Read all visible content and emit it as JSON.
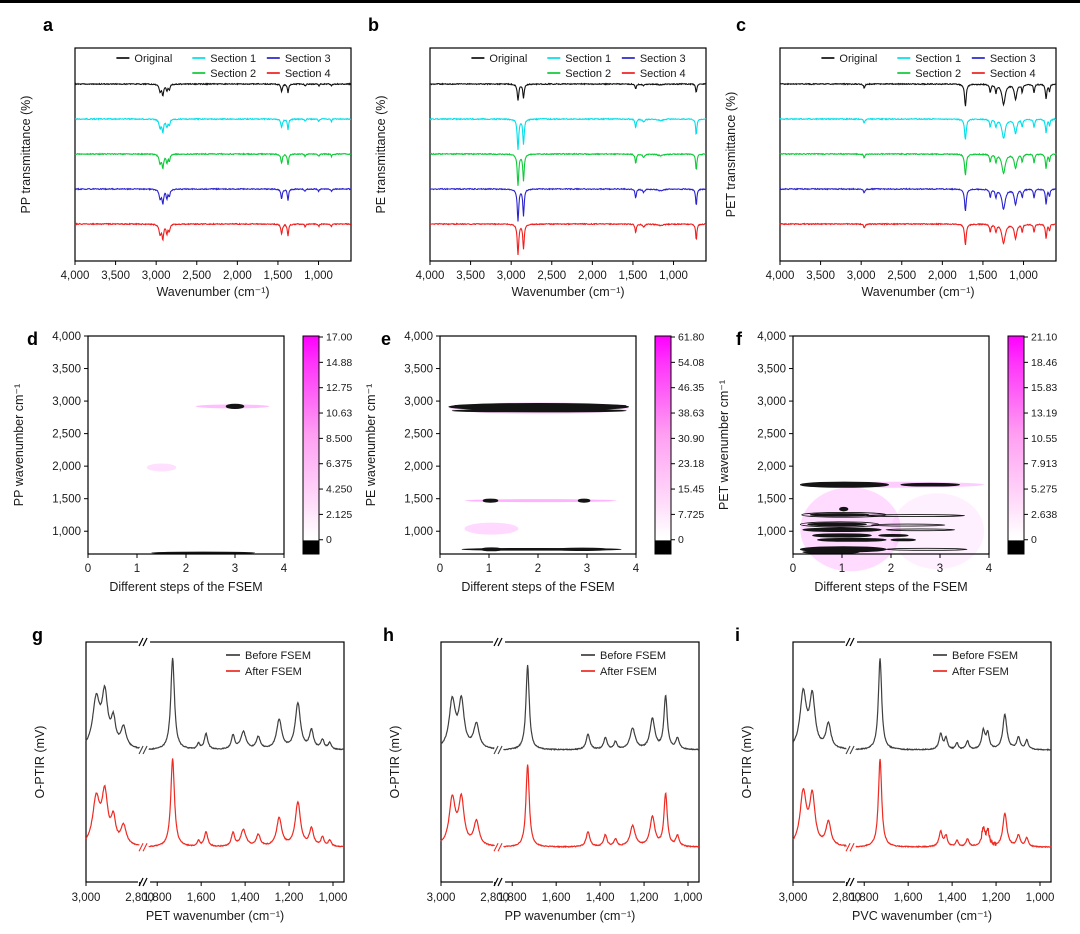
{
  "panels": {
    "a": {
      "letter": "a"
    },
    "b": {
      "letter": "b"
    },
    "c": {
      "letter": "c"
    },
    "d": {
      "letter": "d"
    },
    "e": {
      "letter": "e"
    },
    "f": {
      "letter": "f"
    },
    "g": {
      "letter": "g"
    },
    "h": {
      "letter": "h"
    },
    "i": {
      "letter": "i"
    }
  },
  "chart_data": [
    {
      "id": "a",
      "type": "ftir",
      "title": "",
      "ylabel": "PP transmittance (%)",
      "xlabel": "Wavenumber (cm⁻¹)",
      "x_range": [
        4000,
        600
      ],
      "x_tick_values": [
        4000,
        3500,
        3000,
        2500,
        2000,
        1500,
        1000
      ],
      "x_tick_labels": [
        "4,000",
        "3,500",
        "3,000",
        "2,500",
        "2,000",
        "1,500",
        "1,000"
      ],
      "noise": 1.0,
      "series": [
        {
          "name": "Original",
          "color": "#111111",
          "scale": 0.8
        },
        {
          "name": "Section 1",
          "color": "#00dfe9",
          "scale": 0.95
        },
        {
          "name": "Section 2",
          "color": "#0ec939",
          "scale": 1.0
        },
        {
          "name": "Section 3",
          "color": "#2a23cd",
          "scale": 1.05
        },
        {
          "name": "Section 4",
          "color": "#f01e1e",
          "scale": 1.1
        }
      ],
      "bands": [
        {
          "c": 2952,
          "w": 14,
          "d": 9
        },
        {
          "c": 2918,
          "w": 12,
          "d": 13
        },
        {
          "c": 2868,
          "w": 12,
          "d": 8
        },
        {
          "c": 2838,
          "w": 10,
          "d": 6
        },
        {
          "c": 1455,
          "w": 11,
          "d": 9
        },
        {
          "c": 1376,
          "w": 9,
          "d": 11
        },
        {
          "c": 1166,
          "w": 8,
          "d": 2.5
        },
        {
          "c": 997,
          "w": 7,
          "d": 2.5
        },
        {
          "c": 841,
          "w": 7,
          "d": 2.5
        }
      ]
    },
    {
      "id": "b",
      "type": "ftir",
      "title": "",
      "ylabel": "PE transmittance (%)",
      "xlabel": "Wavenumber (cm⁻¹)",
      "x_range": [
        4000,
        600
      ],
      "x_tick_values": [
        4000,
        3500,
        3000,
        2500,
        2000,
        1500,
        1000
      ],
      "x_tick_labels": [
        "4,000",
        "3,500",
        "3,000",
        "2,500",
        "2,000",
        "1,500",
        "1,000"
      ],
      "noise": 1.0,
      "series": [
        {
          "name": "Original",
          "color": "#111111",
          "scale": 0.55
        },
        {
          "name": "Section 1",
          "color": "#00dfe9",
          "scale": 1.0
        },
        {
          "name": "Section 2",
          "color": "#0ec939",
          "scale": 1.05
        },
        {
          "name": "Section 3",
          "color": "#2a23cd",
          "scale": 1.05
        },
        {
          "name": "Section 4",
          "color": "#f01e1e",
          "scale": 1.0
        }
      ],
      "bands": [
        {
          "c": 2916,
          "w": 11,
          "d": 30
        },
        {
          "c": 2848,
          "w": 10,
          "d": 25
        },
        {
          "c": 1466,
          "w": 9,
          "d": 9
        },
        {
          "c": 1368,
          "w": 16,
          "d": 3
        },
        {
          "c": 1160,
          "w": 40,
          "d": 1.5
        },
        {
          "c": 720,
          "w": 9,
          "d": 16
        }
      ]
    },
    {
      "id": "c",
      "type": "ftir",
      "title": "",
      "ylabel": "PET transmittance (%)",
      "xlabel": "Wavenumber (cm⁻¹)",
      "x_range": [
        4000,
        600
      ],
      "x_tick_values": [
        4000,
        3500,
        3000,
        2500,
        2000,
        1500,
        1000
      ],
      "x_tick_labels": [
        "4,000",
        "3,500",
        "3,000",
        "2,500",
        "2,000",
        "1,500",
        "1,000"
      ],
      "noise": 1.2,
      "noise_per_series": [
        2.0,
        1.2,
        1.2,
        1.2,
        1.2
      ],
      "series": [
        {
          "name": "Original",
          "color": "#111111",
          "scale": 1.0
        },
        {
          "name": "Section 1",
          "color": "#00dfe9",
          "scale": 0.95
        },
        {
          "name": "Section 2",
          "color": "#0ec939",
          "scale": 0.95
        },
        {
          "name": "Section 3",
          "color": "#2a23cd",
          "scale": 1.0
        },
        {
          "name": "Section 4",
          "color": "#f01e1e",
          "scale": 0.95
        }
      ],
      "bands": [
        {
          "c": 2962,
          "w": 10,
          "d": 4
        },
        {
          "c": 1716,
          "w": 12,
          "d": 22
        },
        {
          "c": 1410,
          "w": 10,
          "d": 8
        },
        {
          "c": 1340,
          "w": 10,
          "d": 8
        },
        {
          "c": 1246,
          "w": 24,
          "d": 20
        },
        {
          "c": 1098,
          "w": 18,
          "d": 15
        },
        {
          "c": 1016,
          "w": 9,
          "d": 8
        },
        {
          "c": 870,
          "w": 9,
          "d": 9
        },
        {
          "c": 722,
          "w": 10,
          "d": 15
        },
        {
          "c": 680,
          "w": 8,
          "d": 7
        }
      ]
    },
    {
      "id": "d",
      "type": "heatmap",
      "ylabel": "PP wavenumber cm⁻¹",
      "xlabel": "Different steps of the FSEM",
      "y_range": [
        4000,
        650
      ],
      "y_tick_values": [
        4000,
        3500,
        3000,
        2500,
        2000,
        1500,
        1000
      ],
      "y_tick_labels": [
        "4,000",
        "3,500",
        "3,000",
        "2,500",
        "2,000",
        "1,500",
        "1,000"
      ],
      "x_tick_values": [
        0,
        1,
        2,
        3,
        4
      ],
      "x_tick_labels": [
        "0",
        "1",
        "2",
        "3",
        "4"
      ],
      "colorbar": {
        "top_color": "#ff00ff",
        "tick_labels": [
          "17.00",
          "14.88",
          "12.75",
          "10.63",
          "8.500",
          "6.375",
          "4.250",
          "2.125",
          "0"
        ]
      },
      "glows": [
        {
          "y": 2918,
          "x0": 2.2,
          "x1": 3.7,
          "ry": 2,
          "o": 0.25
        },
        {
          "y": 1980,
          "x0": 1.2,
          "x1": 1.8,
          "ry": 4,
          "o": 0.12
        }
      ],
      "bands": [
        {
          "y": 2918,
          "x0": 2.82,
          "x1": 3.18,
          "t": 2.2,
          "fill": true
        },
        {
          "y": 668,
          "x0": 1.3,
          "x1": 3.4,
          "t": 0.8,
          "fill": true
        }
      ]
    },
    {
      "id": "e",
      "type": "heatmap",
      "ylabel": "PE wavenumber cm⁻¹",
      "xlabel": "Different steps of the FSEM",
      "y_range": [
        4000,
        650
      ],
      "y_tick_values": [
        4000,
        3500,
        3000,
        2500,
        2000,
        1500,
        1000
      ],
      "y_tick_labels": [
        "4,000",
        "3,500",
        "3,000",
        "2,500",
        "2,000",
        "1,500",
        "1,000"
      ],
      "x_tick_values": [
        0,
        1,
        2,
        3,
        4
      ],
      "x_tick_labels": [
        "0",
        "1",
        "2",
        "3",
        "4"
      ],
      "colorbar": {
        "top_color": "#ff00ff",
        "tick_labels": [
          "61.80",
          "54.08",
          "46.35",
          "38.63",
          "30.90",
          "23.18",
          "15.45",
          "7.725",
          "0"
        ]
      },
      "glows": [
        {
          "y": 2890,
          "x0": 0.2,
          "x1": 3.85,
          "ry": 6,
          "o": 0.15
        },
        {
          "y": 1470,
          "x0": 0.5,
          "x1": 3.6,
          "ry": 1.5,
          "o": 0.3
        },
        {
          "y": 1040,
          "x0": 0.5,
          "x1": 1.6,
          "ry": 6,
          "o": 0.15
        }
      ],
      "bands": [
        {
          "y": 2912,
          "x0": 0.18,
          "x1": 3.85,
          "t": 3.4,
          "fill": true
        },
        {
          "y": 2934,
          "x0": 0.3,
          "x1": 3.8,
          "t": 0.8,
          "fill": false
        },
        {
          "y": 2852,
          "x0": 0.25,
          "x1": 3.8,
          "t": 1.2,
          "fill": true
        },
        {
          "y": 1470,
          "x0": 0.88,
          "x1": 1.18,
          "t": 1.6,
          "fill": true
        },
        {
          "y": 1470,
          "x0": 2.82,
          "x1": 3.06,
          "t": 1.6,
          "fill": true
        },
        {
          "y": 722,
          "x0": 0.45,
          "x1": 3.7,
          "t": 0.9,
          "fill": true
        },
        {
          "y": 722,
          "x0": 0.85,
          "x1": 1.25,
          "t": 1.5,
          "fill": true
        },
        {
          "y": 722,
          "x0": 2.4,
          "x1": 3.4,
          "t": 1.2,
          "fill": true
        }
      ]
    },
    {
      "id": "f",
      "type": "heatmap",
      "ylabel": "PET wavenumber cm⁻¹",
      "xlabel": "Different steps of the FSEM",
      "y_range": [
        4000,
        650
      ],
      "y_tick_values": [
        4000,
        3500,
        3000,
        2500,
        2000,
        1500,
        1000
      ],
      "y_tick_labels": [
        "4,000",
        "3,500",
        "3,000",
        "2,500",
        "2,000",
        "1,500",
        "1,000"
      ],
      "x_tick_values": [
        0,
        1,
        2,
        3,
        4
      ],
      "x_tick_labels": [
        "0",
        "1",
        "2",
        "3",
        "4"
      ],
      "colorbar": {
        "top_color": "#ff00ff",
        "tick_labels": [
          "21.10",
          "18.46",
          "15.83",
          "13.19",
          "10.55",
          "7.913",
          "5.275",
          "2.638",
          "0"
        ]
      },
      "glows": [
        {
          "y": 1030,
          "x0": 0.15,
          "x1": 2.2,
          "ry": 42,
          "o": 0.14
        },
        {
          "y": 1000,
          "x0": 2.0,
          "x1": 3.9,
          "ry": 38,
          "o": 0.06
        },
        {
          "y": 1715,
          "x0": 0.2,
          "x1": 3.9,
          "ry": 3,
          "o": 0.2
        }
      ],
      "bands": [
        {
          "y": 1715,
          "x0": 0.15,
          "x1": 1.95,
          "t": 2.6,
          "fill": true
        },
        {
          "y": 1715,
          "x0": 2.2,
          "x1": 3.4,
          "t": 1.4,
          "fill": true
        },
        {
          "y": 1340,
          "x0": 0.95,
          "x1": 1.12,
          "t": 1.8,
          "fill": true
        },
        {
          "y": 1252,
          "x0": 0.18,
          "x1": 1.9,
          "t": 2.4,
          "fill": false
        },
        {
          "y": 1252,
          "x0": 0.35,
          "x1": 1.55,
          "t": 1.2,
          "fill": true
        },
        {
          "y": 1240,
          "x0": 1.5,
          "x1": 3.5,
          "t": 1.0,
          "fill": false
        },
        {
          "y": 1105,
          "x0": 0.15,
          "x1": 1.75,
          "t": 2.6,
          "fill": false
        },
        {
          "y": 1105,
          "x0": 0.3,
          "x1": 1.5,
          "t": 1.4,
          "fill": true
        },
        {
          "y": 1095,
          "x0": 1.6,
          "x1": 3.1,
          "t": 1.0,
          "fill": false
        },
        {
          "y": 1022,
          "x0": 0.2,
          "x1": 1.8,
          "t": 1.8,
          "fill": true
        },
        {
          "y": 1022,
          "x0": 1.9,
          "x1": 3.3,
          "t": 0.9,
          "fill": false
        },
        {
          "y": 935,
          "x0": 0.4,
          "x1": 1.6,
          "t": 1.6,
          "fill": true
        },
        {
          "y": 935,
          "x0": 1.75,
          "x1": 2.35,
          "t": 1.0,
          "fill": true
        },
        {
          "y": 868,
          "x0": 0.5,
          "x1": 1.9,
          "t": 1.5,
          "fill": true
        },
        {
          "y": 868,
          "x0": 2.0,
          "x1": 2.5,
          "t": 1.0,
          "fill": true
        },
        {
          "y": 722,
          "x0": 0.15,
          "x1": 1.9,
          "t": 2.6,
          "fill": true
        },
        {
          "y": 722,
          "x0": 1.9,
          "x1": 3.55,
          "t": 1.0,
          "fill": false
        },
        {
          "y": 678,
          "x0": 0.2,
          "x1": 1.35,
          "t": 1.4,
          "fill": true
        }
      ]
    },
    {
      "id": "g",
      "type": "optir",
      "ylabel": "O-PTIR (mV)",
      "xlabel": "PET wavenumber (cm⁻¹)",
      "x_tick_values": [
        3000,
        2800,
        1800,
        1600,
        1400,
        1200,
        1000
      ],
      "x_tick_labels": [
        "3,000",
        "2,800",
        "1,800",
        "1,600",
        "1,400",
        "1,200",
        "1,000"
      ],
      "axis_break_between": [
        2800,
        1800
      ],
      "series": [
        {
          "name": "Before FSEM",
          "color": "#3f3f3f",
          "baseline": 0.45,
          "scale": 1.0
        },
        {
          "name": "After FSEM",
          "color": "#ee2a22",
          "baseline": 0.855,
          "scale": 0.96
        }
      ],
      "peaks": [
        {
          "c": 2962,
          "w": 16,
          "h": 0.52
        },
        {
          "c": 2930,
          "w": 13,
          "h": 0.56
        },
        {
          "c": 2898,
          "w": 10,
          "h": 0.28
        },
        {
          "c": 2860,
          "w": 12,
          "h": 0.22
        },
        {
          "c": 1730,
          "w": 10,
          "h": 1.0
        },
        {
          "c": 1612,
          "w": 7,
          "h": 0.06
        },
        {
          "c": 1578,
          "w": 9,
          "h": 0.17
        },
        {
          "c": 1455,
          "w": 9,
          "h": 0.15
        },
        {
          "c": 1408,
          "w": 14,
          "h": 0.19
        },
        {
          "c": 1340,
          "w": 11,
          "h": 0.13
        },
        {
          "c": 1245,
          "w": 14,
          "h": 0.32
        },
        {
          "c": 1160,
          "w": 14,
          "h": 0.5
        },
        {
          "c": 1098,
          "w": 11,
          "h": 0.2
        },
        {
          "c": 1048,
          "w": 9,
          "h": 0.1
        },
        {
          "c": 1015,
          "w": 8,
          "h": 0.07
        }
      ]
    },
    {
      "id": "h",
      "type": "optir",
      "ylabel": "O-PTIR (mV)",
      "xlabel": "PP wavenumber (cm⁻¹)",
      "x_tick_values": [
        3000,
        2800,
        1800,
        1600,
        1400,
        1200,
        1000
      ],
      "x_tick_labels": [
        "3,000",
        "2,800",
        "1,800",
        "1,600",
        "1,400",
        "1,200",
        "1,000"
      ],
      "axis_break_between": [
        2800,
        1800
      ],
      "series": [
        {
          "name": "Before FSEM",
          "color": "#3f3f3f",
          "baseline": 0.45,
          "scale": 1.0
        },
        {
          "name": "After FSEM",
          "color": "#ee2a22",
          "baseline": 0.855,
          "scale": 0.98
        }
      ],
      "peaks": [
        {
          "c": 2958,
          "w": 14,
          "h": 0.52
        },
        {
          "c": 2924,
          "w": 12,
          "h": 0.5
        },
        {
          "c": 2868,
          "w": 12,
          "h": 0.27
        },
        {
          "c": 1730,
          "w": 9,
          "h": 0.92
        },
        {
          "c": 1455,
          "w": 10,
          "h": 0.17
        },
        {
          "c": 1376,
          "w": 9,
          "h": 0.13
        },
        {
          "c": 1330,
          "w": 8,
          "h": 0.08
        },
        {
          "c": 1252,
          "w": 14,
          "h": 0.23
        },
        {
          "c": 1162,
          "w": 13,
          "h": 0.33
        },
        {
          "c": 1102,
          "w": 9,
          "h": 0.58
        },
        {
          "c": 1048,
          "w": 9,
          "h": 0.12
        }
      ]
    },
    {
      "id": "i",
      "type": "optir",
      "ylabel": "O-PTIR (mV)",
      "xlabel": "PVC wavenumber (cm⁻¹)",
      "x_tick_values": [
        3000,
        2800,
        1800,
        1600,
        1400,
        1200,
        1000
      ],
      "x_tick_labels": [
        "3,000",
        "2,800",
        "1,800",
        "1,600",
        "1,400",
        "1,200",
        "1,000"
      ],
      "axis_break_between": [
        2800,
        1800
      ],
      "series": [
        {
          "name": "Before FSEM",
          "color": "#3f3f3f",
          "baseline": 0.45,
          "scale": 1.0
        },
        {
          "name": "After FSEM",
          "color": "#ee2a22",
          "baseline": 0.855,
          "scale": 0.96,
          "spikes": {
            "x0": 1200,
            "x1": 1270,
            "amp": 5
          }
        }
      ],
      "peaks": [
        {
          "c": 2962,
          "w": 14,
          "h": 0.6
        },
        {
          "c": 2928,
          "w": 12,
          "h": 0.55
        },
        {
          "c": 2868,
          "w": 11,
          "h": 0.27
        },
        {
          "c": 1728,
          "w": 9,
          "h": 1.0
        },
        {
          "c": 1452,
          "w": 9,
          "h": 0.17
        },
        {
          "c": 1428,
          "w": 8,
          "h": 0.12
        },
        {
          "c": 1378,
          "w": 7,
          "h": 0.07
        },
        {
          "c": 1330,
          "w": 8,
          "h": 0.09
        },
        {
          "c": 1258,
          "w": 9,
          "h": 0.2
        },
        {
          "c": 1238,
          "w": 8,
          "h": 0.17
        },
        {
          "c": 1160,
          "w": 11,
          "h": 0.38
        },
        {
          "c": 1098,
          "w": 9,
          "h": 0.13
        },
        {
          "c": 1060,
          "w": 8,
          "h": 0.1
        }
      ]
    }
  ]
}
